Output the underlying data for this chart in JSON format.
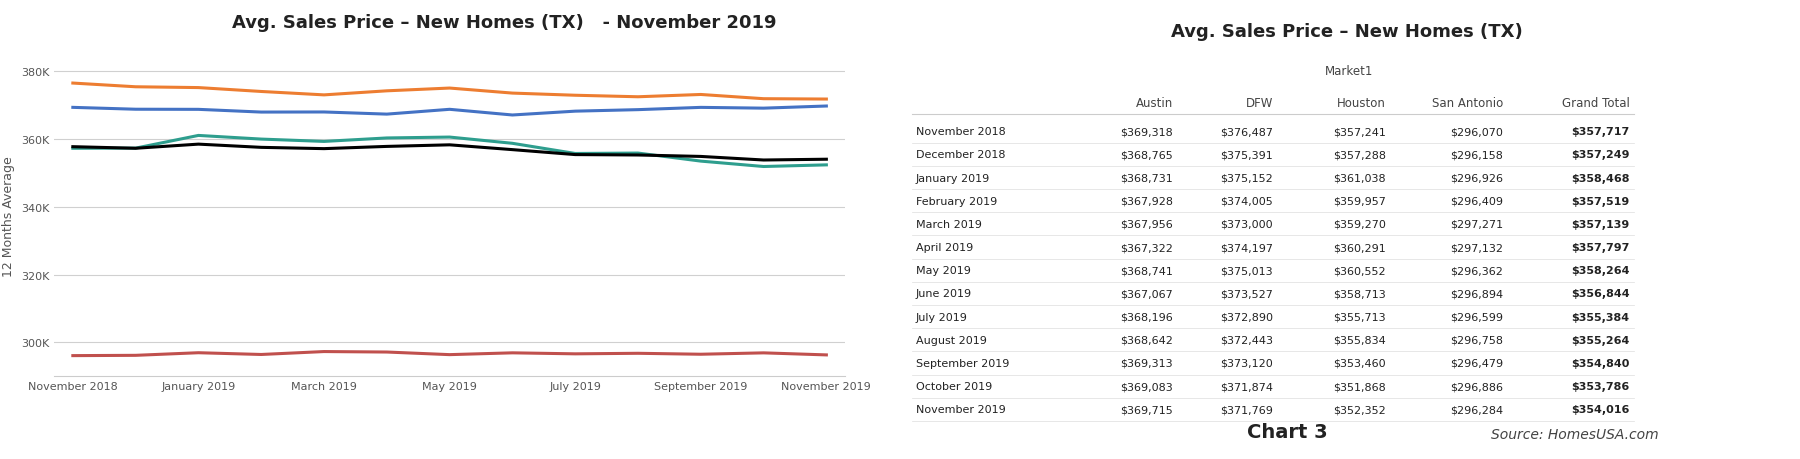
{
  "chart_title": "Avg. Sales Price – New Homes (TX)   - November 2019",
  "table_title": "Avg. Sales Price – New Homes (TX)",
  "ylabel": "12 Months Average",
  "months": [
    "November 2018",
    "December 2018",
    "January 2019",
    "February 2019",
    "March 2019",
    "April 2019",
    "May 2019",
    "June 2019",
    "July 2019",
    "August 2019",
    "September 2019",
    "October 2019",
    "November 2019"
  ],
  "x_ticks": [
    "November 2018",
    "January 2019",
    "March 2019",
    "May 2019",
    "July 2019",
    "September 2019",
    "November 2019"
  ],
  "austin": [
    369318,
    368765,
    368731,
    367928,
    367956,
    367322,
    368741,
    367067,
    368196,
    368642,
    369313,
    369083,
    369715
  ],
  "dfw": [
    376487,
    375391,
    375152,
    374005,
    373000,
    374197,
    375013,
    373527,
    372890,
    372443,
    373120,
    371874,
    371769
  ],
  "houston": [
    357241,
    357288,
    361038,
    359957,
    359270,
    360291,
    360552,
    358713,
    355713,
    355834,
    353460,
    351868,
    352352
  ],
  "san_antonio": [
    296070,
    296158,
    296926,
    296409,
    297271,
    297132,
    296362,
    296894,
    296599,
    296758,
    296479,
    296886,
    296284
  ],
  "grand_total": [
    357717,
    357249,
    358468,
    357519,
    357139,
    357797,
    358264,
    356844,
    355384,
    355264,
    354840,
    353786,
    354016
  ],
  "austin_color": "#4472c4",
  "dfw_color": "#ed7d31",
  "houston_color": "#2e9e8e",
  "san_antonio_color": "#c0504d",
  "grand_total_color": "#000000",
  "ylim_min": 290000,
  "ylim_max": 385000,
  "yticks": [
    300000,
    320000,
    340000,
    360000,
    380000
  ],
  "ytick_labels": [
    "300K",
    "320K",
    "340K",
    "360K",
    "380K"
  ],
  "background_color": "#ffffff",
  "grid_color": "#d0d0d0",
  "table_rows": [
    [
      "November 2018",
      "$369,318",
      "$376,487",
      "$357,241",
      "$296,070",
      "$357,717"
    ],
    [
      "December 2018",
      "$368,765",
      "$375,391",
      "$357,288",
      "$296,158",
      "$357,249"
    ],
    [
      "January 2019",
      "$368,731",
      "$375,152",
      "$361,038",
      "$296,926",
      "$358,468"
    ],
    [
      "February 2019",
      "$367,928",
      "$374,005",
      "$359,957",
      "$296,409",
      "$357,519"
    ],
    [
      "March 2019",
      "$367,956",
      "$373,000",
      "$359,270",
      "$297,271",
      "$357,139"
    ],
    [
      "April 2019",
      "$367,322",
      "$374,197",
      "$360,291",
      "$297,132",
      "$357,797"
    ],
    [
      "May 2019",
      "$368,741",
      "$375,013",
      "$360,552",
      "$296,362",
      "$358,264"
    ],
    [
      "June 2019",
      "$367,067",
      "$373,527",
      "$358,713",
      "$296,894",
      "$356,844"
    ],
    [
      "July 2019",
      "$368,196",
      "$372,890",
      "$355,713",
      "$296,599",
      "$355,384"
    ],
    [
      "August 2019",
      "$368,642",
      "$372,443",
      "$355,834",
      "$296,758",
      "$355,264"
    ],
    [
      "September 2019",
      "$369,313",
      "$373,120",
      "$353,460",
      "$296,479",
      "$354,840"
    ],
    [
      "October 2019",
      "$369,083",
      "$371,874",
      "$351,868",
      "$296,886",
      "$353,786"
    ],
    [
      "November 2019",
      "$369,715",
      "$371,769",
      "$352,352",
      "$296,284",
      "$354,016"
    ]
  ],
  "table_col_headers": [
    "",
    "Austin",
    "DFW",
    "Houston",
    "San Antonio",
    "Grand Total"
  ],
  "table_super_header": "Market1"
}
